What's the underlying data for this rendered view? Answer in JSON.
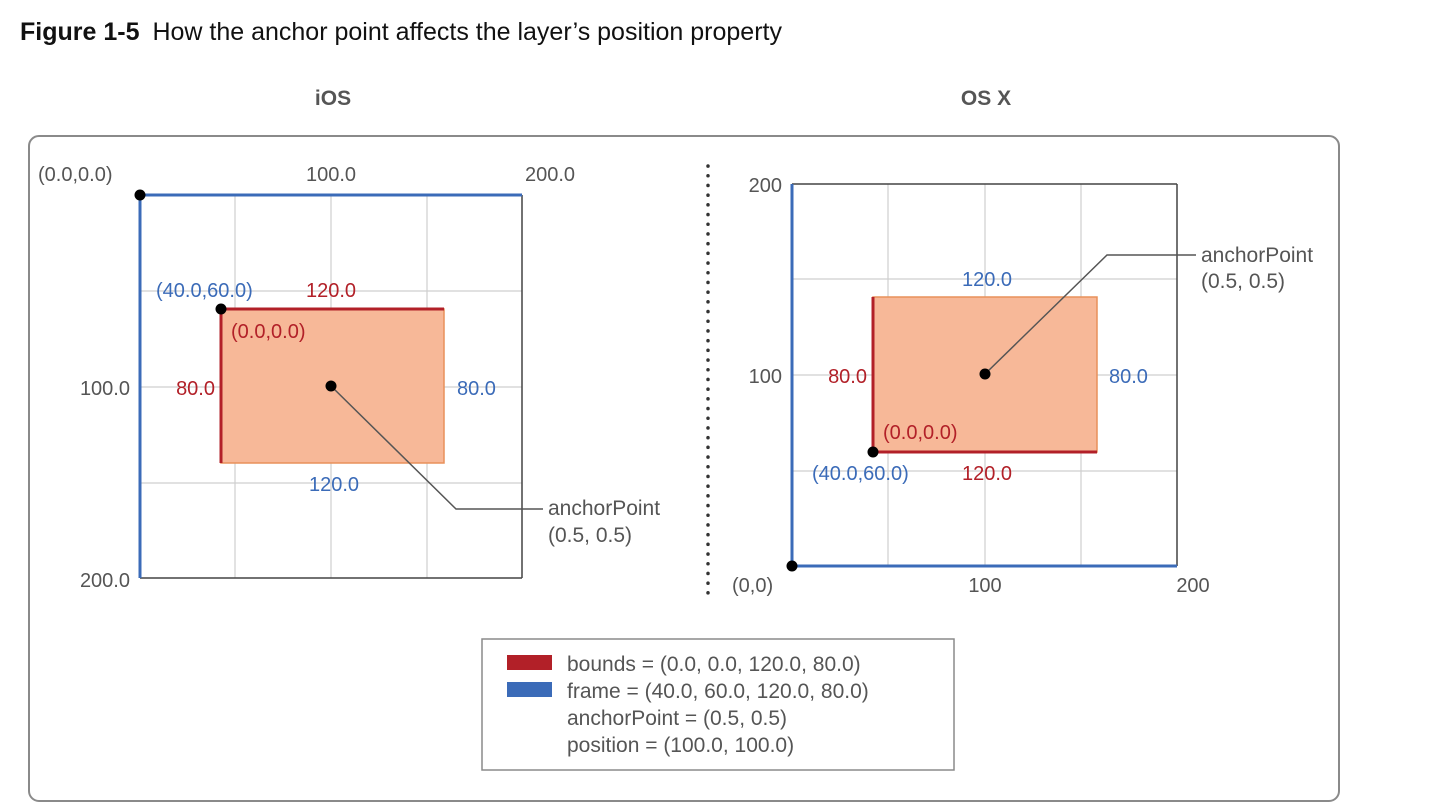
{
  "caption": {
    "figure_number": "Figure 1-5",
    "title": "How the anchor point affects the layer’s position property"
  },
  "panels": {
    "ios": {
      "heading": "iOS",
      "origin_label": "(0.0,0.0)",
      "x_ticks": [
        "100.0",
        "200.0"
      ],
      "y_ticks": [
        "100.0",
        "200.0"
      ],
      "frame_origin_label": "(40.0,60.0)",
      "bounds_width_label": "120.0",
      "bounds_origin_label": "(0.0,0.0)",
      "bounds_height_label": "80.0",
      "frame_height_label": "80.0",
      "frame_width_label": "120.0",
      "anchor_callout": {
        "line1": "anchorPoint",
        "line2": "(0.5, 0.5)"
      }
    },
    "osx": {
      "heading": "OS X",
      "origin_label": "(0,0)",
      "x_ticks": [
        "100",
        "200"
      ],
      "y_ticks": [
        "200",
        "100"
      ],
      "frame_width_label": "120.0",
      "bounds_height_label": "80.0",
      "frame_height_label": "80.0",
      "bounds_origin_label": "(0.0,0.0)",
      "frame_origin_label": "(40.0,60.0)",
      "bounds_width_label": "120.0",
      "anchor_callout": {
        "line1": "anchorPoint",
        "line2": "(0.5, 0.5)"
      }
    }
  },
  "legend": {
    "bounds": "bounds = (0.0, 0.0, 120.0, 80.0)",
    "frame": "frame = (40.0, 60.0, 120.0, 80.0)",
    "anchor": "anchorPoint = (0.5, 0.5)",
    "position": "position = (100.0, 100.0)"
  },
  "colors": {
    "bounds": "#b22028",
    "frame": "#3b6bb8",
    "layer_fill": "#f7b898",
    "layer_stroke": "#e8915a",
    "grid": "#cfcfcf",
    "text": "#555555"
  }
}
